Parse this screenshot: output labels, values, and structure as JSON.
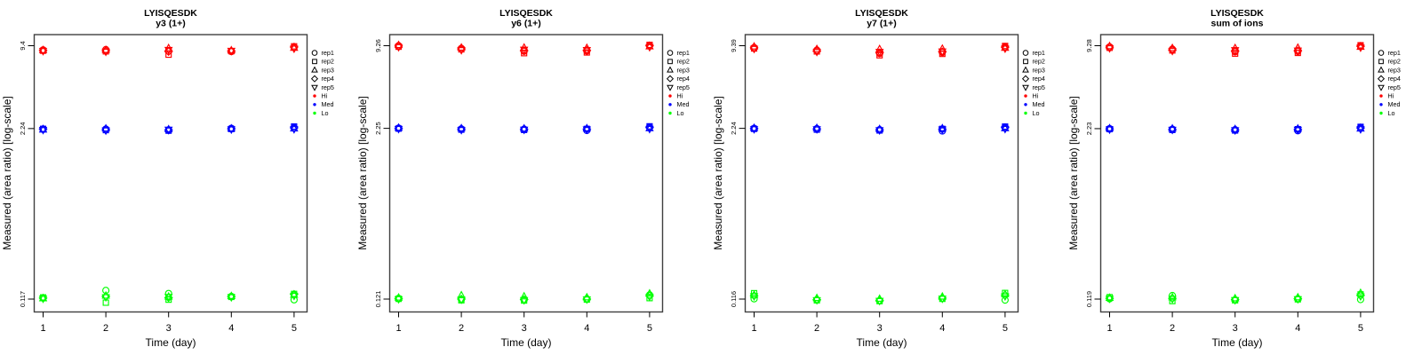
{
  "shared": {
    "x_axis_label": "Time (day)",
    "y_axis_label": "Measured (area ratio) [log-scale]",
    "x_tick_labels": [
      "1",
      "2",
      "3",
      "4",
      "5"
    ],
    "legend": {
      "reps": [
        {
          "label": "rep1",
          "symbol": "circle"
        },
        {
          "label": "rep2",
          "symbol": "square"
        },
        {
          "label": "rep3",
          "symbol": "triangle-up"
        },
        {
          "label": "rep4",
          "symbol": "diamond"
        },
        {
          "label": "rep5",
          "symbol": "triangle-down"
        }
      ],
      "levels": [
        {
          "label": "Hi",
          "color": "#ff0000"
        },
        {
          "label": "Med",
          "color": "#0000ff"
        },
        {
          "label": "Lo",
          "color": "#00ff00"
        }
      ]
    },
    "colors": {
      "hi": "#ff0000",
      "med": "#0000ff",
      "lo": "#00ff00",
      "box": "#404040"
    }
  },
  "chart_data": [
    {
      "type": "scatter",
      "title": "LYISQESDK",
      "subtitle": "y3 (1+)",
      "xlabel": "Time (day)",
      "ylabel": "Measured (area ratio) [log-scale]",
      "x_scale": "linear",
      "y_scale": "log",
      "grid": false,
      "legend_position": "right",
      "x": [
        1,
        2,
        3,
        4,
        5
      ],
      "y_ticks": [
        9.4,
        2.24,
        0.117
      ],
      "y_tick_labels": [
        "9.4",
        "2.24",
        "0.117"
      ],
      "rep_symbols": [
        "circle",
        "square",
        "triangle-up",
        "diamond",
        "triangle-down"
      ],
      "series": [
        {
          "name": "Hi",
          "color": "#ff0000",
          "values_by_day": [
            [
              8.74,
              8.62,
              8.7,
              8.66,
              8.58
            ],
            [
              8.79,
              8.52,
              8.72,
              8.62,
              8.48
            ],
            [
              8.55,
              8.05,
              9.0,
              8.5,
              8.75
            ],
            [
              8.49,
              8.55,
              8.66,
              8.58,
              8.62
            ],
            [
              9.12,
              9.3,
              9.05,
              9.18,
              8.95
            ]
          ]
        },
        {
          "name": "Med",
          "color": "#0000ff",
          "values_by_day": [
            [
              2.21,
              2.23,
              2.2,
              2.22,
              2.19
            ],
            [
              2.22,
              2.18,
              2.24,
              2.2,
              2.17
            ],
            [
              2.19,
              2.16,
              2.21,
              2.18,
              2.2
            ],
            [
              2.25,
              2.22,
              2.24,
              2.23,
              2.21
            ],
            [
              2.28,
              2.32,
              2.24,
              2.27,
              2.22
            ]
          ]
        },
        {
          "name": "Lo",
          "color": "#00ff00",
          "values_by_day": [
            [
              0.1195,
              0.1205,
              0.1185,
              0.119,
              0.118
            ],
            [
              0.136,
              0.11,
              0.124,
              0.1225,
              0.121
            ],
            [
              0.129,
              0.1158,
              0.122,
              0.12,
              0.1215
            ],
            [
              0.1225,
              0.1215,
              0.1232,
              0.122,
              0.121
            ],
            [
              0.1155,
              0.128,
              0.126,
              0.127,
              0.124
            ]
          ]
        }
      ]
    },
    {
      "type": "scatter",
      "title": "LYISQESDK",
      "subtitle": "y6 (1+)",
      "xlabel": "Time (day)",
      "ylabel": "Measured (area ratio) [log-scale]",
      "x_scale": "linear",
      "y_scale": "log",
      "grid": false,
      "legend_position": "right",
      "x": [
        1,
        2,
        3,
        4,
        5
      ],
      "y_ticks": [
        9.26,
        2.25,
        0.121
      ],
      "y_tick_labels": [
        "9.26",
        "2.25",
        "0.121"
      ],
      "rep_symbols": [
        "circle",
        "square",
        "triangle-up",
        "diamond",
        "triangle-down"
      ],
      "series": [
        {
          "name": "Hi",
          "color": "#ff0000",
          "values_by_day": [
            [
              9.26,
              9.1,
              9.35,
              9.2,
              9.05
            ],
            [
              8.85,
              8.7,
              8.95,
              8.78,
              8.6
            ],
            [
              8.42,
              8.15,
              8.95,
              8.5,
              8.65
            ],
            [
              8.45,
              8.25,
              8.9,
              8.55,
              8.6
            ],
            [
              9.3,
              9.4,
              9.15,
              9.25,
              9.05
            ]
          ]
        },
        {
          "name": "Med",
          "color": "#0000ff",
          "values_by_day": [
            [
              2.26,
              2.24,
              2.27,
              2.25,
              2.23
            ],
            [
              2.23,
              2.2,
              2.25,
              2.22,
              2.19
            ],
            [
              2.22,
              2.19,
              2.24,
              2.21,
              2.2
            ],
            [
              2.17,
              2.23,
              2.25,
              2.22,
              2.21
            ],
            [
              2.3,
              2.33,
              2.25,
              2.28,
              2.23
            ]
          ]
        },
        {
          "name": "Lo",
          "color": "#00ff00",
          "values_by_day": [
            [
              0.1225,
              0.1215,
              0.124,
              0.122,
              0.121
            ],
            [
              0.1205,
              0.1185,
              0.129,
              0.121,
              0.12
            ],
            [
              0.1195,
              0.118,
              0.1265,
              0.12,
              0.119
            ],
            [
              0.1215,
              0.12,
              0.1245,
              0.121,
              0.1205
            ],
            [
              0.13,
              0.123,
              0.133,
              0.128,
              0.126
            ]
          ]
        }
      ]
    },
    {
      "type": "scatter",
      "title": "LYISQESDK",
      "subtitle": "y7 (1+)",
      "xlabel": "Time (day)",
      "ylabel": "Measured (area ratio) [log-scale]",
      "x_scale": "linear",
      "y_scale": "log",
      "grid": false,
      "legend_position": "right",
      "x": [
        1,
        2,
        3,
        4,
        5
      ],
      "y_ticks": [
        9.39,
        2.24,
        0.116
      ],
      "y_tick_labels": [
        "9.39",
        "2.24",
        "0.116"
      ],
      "rep_symbols": [
        "circle",
        "square",
        "triangle-up",
        "diamond",
        "triangle-down"
      ],
      "series": [
        {
          "name": "Hi",
          "color": "#ff0000",
          "values_by_day": [
            [
              9.1,
              8.95,
              9.25,
              9.05,
              8.9
            ],
            [
              8.7,
              8.5,
              8.85,
              8.6,
              8.45
            ],
            [
              8.2,
              7.95,
              8.85,
              8.3,
              8.45
            ],
            [
              8.35,
              8.15,
              8.9,
              8.45,
              8.5
            ],
            [
              9.2,
              9.35,
              9.05,
              9.15,
              8.95
            ]
          ]
        },
        {
          "name": "Med",
          "color": "#0000ff",
          "values_by_day": [
            [
              2.24,
              2.22,
              2.25,
              2.23,
              2.21
            ],
            [
              2.23,
              2.19,
              2.25,
              2.22,
              2.21
            ],
            [
              2.19,
              2.16,
              2.21,
              2.18,
              2.17
            ],
            [
              2.14,
              2.22,
              2.24,
              2.21,
              2.2
            ],
            [
              2.28,
              2.31,
              2.24,
              2.27,
              2.22
            ]
          ]
        },
        {
          "name": "Lo",
          "color": "#00ff00",
          "values_by_day": [
            [
              0.1165,
              0.1285,
              0.1245,
              0.123,
              0.122
            ],
            [
              0.1145,
              0.1135,
              0.118,
              0.115,
              0.114
            ],
            [
              0.113,
              0.112,
              0.1165,
              0.1135,
              0.1125
            ],
            [
              0.1175,
              0.1165,
              0.121,
              0.118,
              0.117
            ],
            [
              0.114,
              0.129,
              0.126,
              0.124,
              0.122
            ]
          ]
        }
      ]
    },
    {
      "type": "scatter",
      "title": "LYISQESDK",
      "subtitle": "sum of ions",
      "xlabel": "Time (day)",
      "ylabel": "Measured (area ratio) [log-scale]",
      "x_scale": "linear",
      "y_scale": "log",
      "grid": false,
      "legend_position": "right",
      "x": [
        1,
        2,
        3,
        4,
        5
      ],
      "y_ticks": [
        9.28,
        2.23,
        0.119
      ],
      "y_tick_labels": [
        "9.28",
        "2.23",
        "0.119"
      ],
      "rep_symbols": [
        "circle",
        "square",
        "triangle-up",
        "diamond",
        "triangle-down"
      ],
      "series": [
        {
          "name": "Hi",
          "color": "#ff0000",
          "values_by_day": [
            [
              9.1,
              8.95,
              9.2,
              9.05,
              8.9
            ],
            [
              8.75,
              8.55,
              8.9,
              8.65,
              8.5
            ],
            [
              8.35,
              8.1,
              8.9,
              8.45,
              8.6
            ],
            [
              8.4,
              8.2,
              8.95,
              8.5,
              8.55
            ],
            [
              9.25,
              9.35,
              9.1,
              9.2,
              9.0
            ]
          ]
        },
        {
          "name": "Med",
          "color": "#0000ff",
          "values_by_day": [
            [
              2.23,
              2.21,
              2.24,
              2.22,
              2.2
            ],
            [
              2.21,
              2.18,
              2.23,
              2.2,
              2.19
            ],
            [
              2.19,
              2.16,
              2.21,
              2.18,
              2.17
            ],
            [
              2.15,
              2.21,
              2.23,
              2.2,
              2.19
            ],
            [
              2.27,
              2.3,
              2.23,
              2.26,
              2.21
            ]
          ]
        },
        {
          "name": "Lo",
          "color": "#00ff00",
          "values_by_day": [
            [
              0.1195,
              0.123,
              0.1215,
              0.1205,
              0.12
            ],
            [
              0.1265,
              0.115,
              0.1225,
              0.1205,
              0.1195
            ],
            [
              0.1175,
              0.1165,
              0.1205,
              0.118,
              0.117
            ],
            [
              0.1195,
              0.1185,
              0.1225,
              0.12,
              0.119
            ],
            [
              0.118,
              0.129,
              0.132,
              0.127,
              0.125
            ]
          ]
        }
      ]
    }
  ]
}
